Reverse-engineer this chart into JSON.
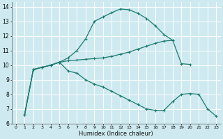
{
  "xlabel": "Humidex (Indice chaleur)",
  "bg_color": "#ceeaf0",
  "grid_color": "#ffffff",
  "line_color": "#1a7a6e",
  "xlim": [
    -0.5,
    23.5
  ],
  "ylim": [
    6,
    14.3
  ],
  "xticks": [
    0,
    1,
    2,
    3,
    4,
    5,
    6,
    7,
    8,
    9,
    10,
    11,
    12,
    13,
    14,
    15,
    16,
    17,
    18,
    19,
    20,
    21,
    22,
    23
  ],
  "yticks": [
    6,
    7,
    8,
    9,
    10,
    11,
    12,
    13,
    14
  ],
  "line1_x": [
    1,
    2,
    3,
    4,
    5,
    6,
    7,
    8,
    9,
    10,
    11,
    12,
    13,
    14,
    15,
    16,
    17,
    18
  ],
  "line1_y": [
    6.6,
    9.7,
    9.85,
    10.0,
    10.2,
    10.5,
    11.0,
    11.8,
    13.0,
    13.3,
    13.6,
    13.85,
    13.8,
    13.55,
    13.2,
    12.7,
    12.1,
    11.7
  ],
  "line2_x": [
    1,
    2,
    3,
    4,
    5,
    6,
    7,
    8,
    9,
    10,
    11,
    12,
    13,
    14,
    15,
    16,
    17,
    18,
    19,
    20
  ],
  "line2_y": [
    6.6,
    9.7,
    9.85,
    10.0,
    10.2,
    10.3,
    10.35,
    10.4,
    10.45,
    10.5,
    10.6,
    10.75,
    10.9,
    11.1,
    11.3,
    11.5,
    11.65,
    11.7,
    10.1,
    10.05
  ],
  "line3_x": [
    1,
    2,
    3,
    4,
    5,
    6,
    7,
    8,
    9,
    10,
    11,
    12,
    13,
    14,
    15,
    16,
    17,
    18,
    19,
    20,
    21,
    22,
    23
  ],
  "line3_y": [
    6.6,
    9.7,
    9.85,
    10.0,
    10.2,
    9.6,
    9.45,
    9.0,
    8.7,
    8.5,
    8.2,
    7.9,
    7.6,
    7.3,
    7.0,
    6.9,
    6.9,
    7.5,
    8.0,
    8.05,
    8.0,
    7.0,
    6.5
  ],
  "marker": "+"
}
